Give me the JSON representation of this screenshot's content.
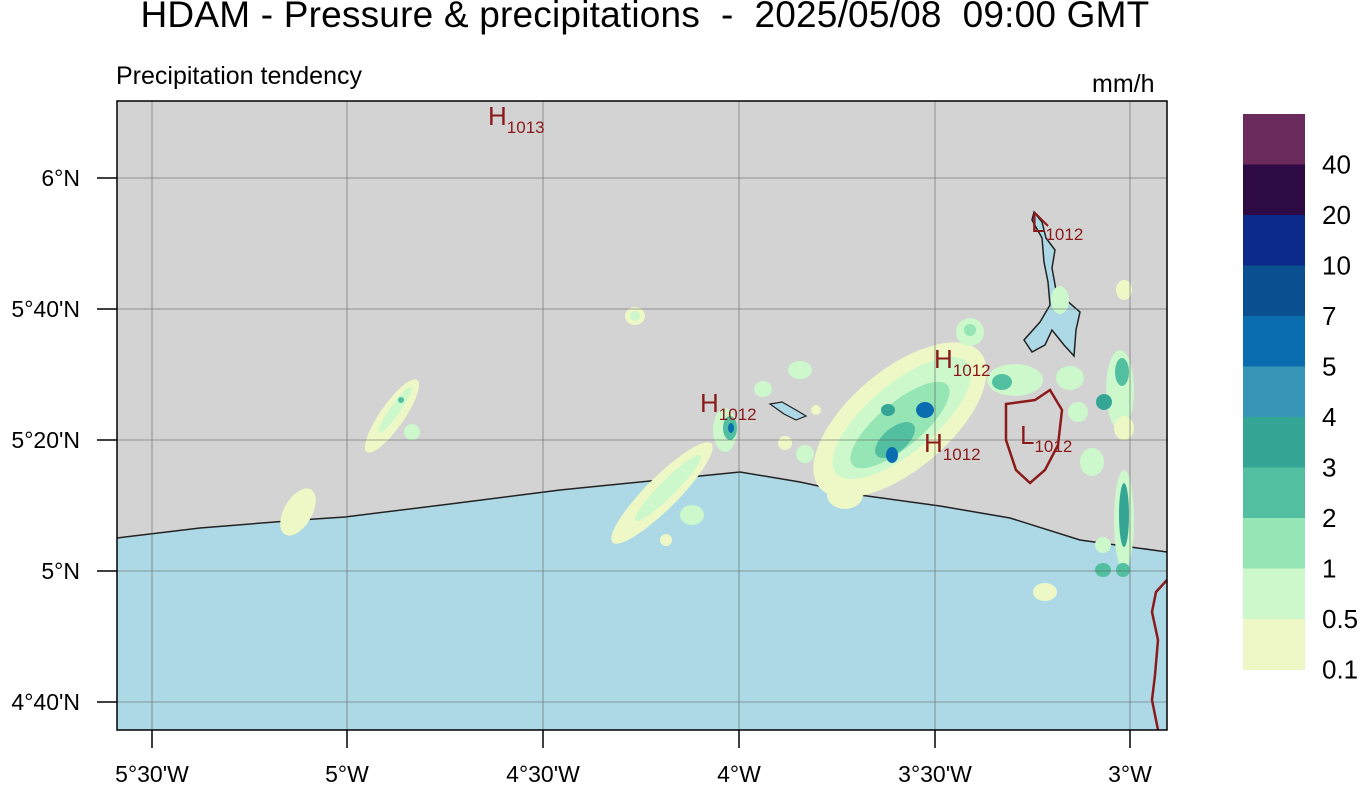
{
  "header": {
    "title": "HDAM - Pressure & precipitations  -  2025/05/08  09:00 GMT",
    "subtitle": "Precipitation tendency",
    "unit": "mm/h"
  },
  "map": {
    "lat_labels": [
      "6°N",
      "5°40'N",
      "5°20'N",
      "5°N",
      "4°40'N"
    ],
    "lon_labels": [
      "5°30'W",
      "5°W",
      "4°30'W",
      "4°W",
      "3°30'W",
      "3°W"
    ],
    "pressure_centers": [
      {
        "type": "H",
        "value": "1013"
      },
      {
        "type": "H",
        "value": "1012"
      },
      {
        "type": "H",
        "value": "1012"
      },
      {
        "type": "H",
        "value": "1012"
      },
      {
        "type": "L",
        "value": "1012"
      },
      {
        "type": "L",
        "value": "1012"
      }
    ],
    "colors": {
      "land": "#d3d3d3",
      "sea": "#add8e6",
      "isobar": "#8b1a1a",
      "coast": "#222222"
    }
  },
  "colorbar": {
    "labels": [
      "40",
      "20",
      "10",
      "7",
      "5",
      "4",
      "3",
      "2",
      "1",
      "0.5",
      "0.1"
    ],
    "colors": [
      "#6b2a5c",
      "#2e0a45",
      "#0c2a8a",
      "#0a4f8f",
      "#0a6db0",
      "#3796b8",
      "#35a696",
      "#52c0a0",
      "#96e5b5",
      "#ccf8cc",
      "#eef8c6"
    ]
  }
}
